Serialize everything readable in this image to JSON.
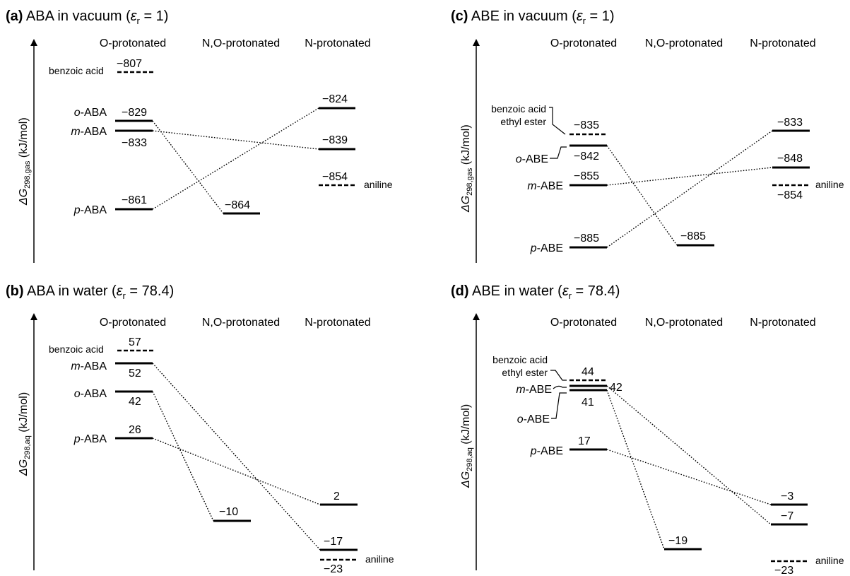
{
  "panels": [
    {
      "id": "a",
      "tag": "(a)",
      "title": " ABA in vacuum (",
      "eps_value": " = 1)",
      "columns": [
        "O-protonated",
        "N,O-protonated",
        "N-protonated"
      ],
      "ylabel_main": "ΔG",
      "ylabel_sub": "298,gas",
      "ylabel_unit": " (kJ/mol)",
      "ref_left": {
        "label": "benzoic acid",
        "value": "−807"
      },
      "ref_right": {
        "label": "aniline",
        "value": "−854"
      },
      "o_levels": [
        {
          "prefix": "o",
          "suffix": "-ABA",
          "value": "−829"
        },
        {
          "prefix": "m",
          "suffix": "-ABA",
          "value": "−833"
        },
        {
          "prefix": "p",
          "suffix": "-ABA",
          "value": "−861"
        }
      ],
      "no_level": {
        "value": "−864"
      },
      "n_levels": [
        {
          "value": "−824"
        },
        {
          "value": "−839"
        }
      ]
    },
    {
      "id": "b",
      "tag": "(b)",
      "title": " ABA in water (",
      "eps_value": " = 78.4)",
      "columns": [
        "O-protonated",
        "N,O-protonated",
        "N-protonated"
      ],
      "ylabel_main": "ΔG",
      "ylabel_sub": "298,aq",
      "ylabel_unit": " (kJ/mol)",
      "ref_left": {
        "label": "benzoic acid",
        "value": "57"
      },
      "ref_right": {
        "label": "aniline",
        "value": "−23"
      },
      "o_levels": [
        {
          "prefix": "m",
          "suffix": "-ABA",
          "value": "52"
        },
        {
          "prefix": "o",
          "suffix": "-ABA",
          "value": "42"
        },
        {
          "prefix": "p",
          "suffix": "-ABA",
          "value": "26"
        }
      ],
      "no_level": {
        "value": "−10"
      },
      "n_levels": [
        {
          "value": "2"
        },
        {
          "value": "−17"
        }
      ]
    },
    {
      "id": "c",
      "tag": "(c)",
      "title": " ABE in vacuum (",
      "eps_value": " = 1)",
      "columns": [
        "O-protonated",
        "N,O-protonated",
        "N-protonated"
      ],
      "ylabel_main": "ΔG",
      "ylabel_sub": "298,gas",
      "ylabel_unit": " (kJ/mol)",
      "ref_left": {
        "label_line1": "benzoic acid",
        "label_line2": "ethyl ester",
        "value": "−835"
      },
      "ref_right": {
        "label": "aniline",
        "value": "−854"
      },
      "o_levels": [
        {
          "prefix": "o",
          "suffix": "-ABE",
          "value": "−842"
        },
        {
          "prefix": "m",
          "suffix": "-ABE",
          "value": "−855"
        },
        {
          "prefix": "p",
          "suffix": "-ABE",
          "value": "−885"
        }
      ],
      "no_level": {
        "value": "−885"
      },
      "n_levels": [
        {
          "value": "−833"
        },
        {
          "value": "−848"
        }
      ]
    },
    {
      "id": "d",
      "tag": "(d)",
      "title": " ABE in water (",
      "eps_value": " = 78.4)",
      "columns": [
        "O-protonated",
        "N,O-protonated",
        "N-protonated"
      ],
      "ylabel_main": "ΔG",
      "ylabel_sub": "298,aq",
      "ylabel_unit": " (kJ/mol)",
      "ref_left": {
        "label_line1": "benzoic acid",
        "label_line2": "ethyl ester",
        "value": "44"
      },
      "ref_right": {
        "label": "aniline",
        "value": "−23"
      },
      "o_levels": [
        {
          "prefix": "m",
          "suffix": "-ABE",
          "value": "42"
        },
        {
          "prefix": "o",
          "suffix": "-ABE",
          "value": "41"
        },
        {
          "prefix": "p",
          "suffix": "-ABE",
          "value": "17"
        }
      ],
      "no_level": {
        "value": "−19"
      },
      "n_levels": [
        {
          "value": "−3"
        },
        {
          "value": "−7"
        }
      ]
    }
  ],
  "eps_symbol": "ε",
  "eps_sub": "r"
}
